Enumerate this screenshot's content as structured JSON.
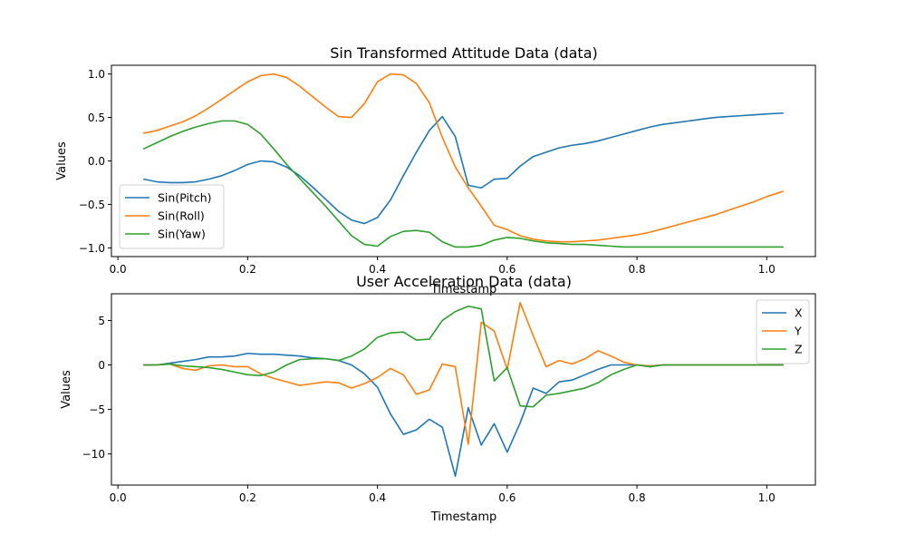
{
  "chart_data": [
    {
      "type": "line",
      "title": "Sin Transformed Attitude Data (data)",
      "xlabel": "Timestamp",
      "ylabel": "Values",
      "xlim": [
        -0.01,
        1.075
      ],
      "ylim": [
        -1.1,
        1.1
      ],
      "xticks": [
        0.0,
        0.2,
        0.4,
        0.6,
        0.8,
        1.0
      ],
      "xtick_labels": [
        "0.0",
        "0.2",
        "0.4",
        "0.6",
        "0.8",
        "1.0"
      ],
      "yticks": [
        -1.0,
        -0.5,
        0.0,
        0.5,
        1.0
      ],
      "ytick_labels": [
        "−1.0",
        "−0.5",
        "0.0",
        "0.5",
        "1.0"
      ],
      "grid": false,
      "legend_position": "bottom-left",
      "x": [
        0.04,
        0.06,
        0.08,
        0.1,
        0.12,
        0.14,
        0.16,
        0.18,
        0.2,
        0.22,
        0.24,
        0.26,
        0.28,
        0.3,
        0.32,
        0.34,
        0.36,
        0.38,
        0.4,
        0.42,
        0.44,
        0.46,
        0.48,
        0.5,
        0.52,
        0.54,
        0.56,
        0.58,
        0.6,
        0.62,
        0.64,
        0.66,
        0.68,
        0.7,
        0.72,
        0.74,
        0.76,
        0.78,
        0.8,
        0.82,
        0.84,
        0.86,
        0.88,
        0.9,
        0.92,
        0.94,
        0.96,
        0.98,
        1.0,
        1.025
      ],
      "series": [
        {
          "name": "Sin(Pitch)",
          "color": "#1f77b4",
          "values": [
            -0.21,
            -0.24,
            -0.25,
            -0.25,
            -0.24,
            -0.21,
            -0.17,
            -0.11,
            -0.04,
            0.0,
            -0.01,
            -0.07,
            -0.17,
            -0.3,
            -0.44,
            -0.58,
            -0.68,
            -0.72,
            -0.65,
            -0.45,
            -0.17,
            0.1,
            0.35,
            0.51,
            0.28,
            -0.28,
            -0.31,
            -0.21,
            -0.2,
            -0.06,
            0.05,
            0.1,
            0.15,
            0.18,
            0.2,
            0.23,
            0.27,
            0.31,
            0.35,
            0.39,
            0.42,
            0.44,
            0.46,
            0.48,
            0.5,
            0.51,
            0.52,
            0.53,
            0.54,
            0.55
          ]
        },
        {
          "name": "Sin(Roll)",
          "color": "#ff7f0e",
          "values": [
            0.32,
            0.35,
            0.4,
            0.45,
            0.52,
            0.61,
            0.71,
            0.81,
            0.91,
            0.98,
            1.0,
            0.96,
            0.86,
            0.74,
            0.62,
            0.51,
            0.5,
            0.66,
            0.91,
            1.0,
            0.99,
            0.89,
            0.67,
            0.27,
            -0.07,
            -0.31,
            -0.52,
            -0.74,
            -0.79,
            -0.86,
            -0.9,
            -0.92,
            -0.93,
            -0.93,
            -0.92,
            -0.91,
            -0.89,
            -0.87,
            -0.85,
            -0.82,
            -0.78,
            -0.74,
            -0.7,
            -0.66,
            -0.62,
            -0.57,
            -0.52,
            -0.47,
            -0.41,
            -0.35
          ]
        },
        {
          "name": "Sin(Yaw)",
          "color": "#2ca02c",
          "values": [
            0.14,
            0.21,
            0.28,
            0.34,
            0.39,
            0.43,
            0.46,
            0.46,
            0.42,
            0.31,
            0.14,
            -0.04,
            -0.2,
            -0.36,
            -0.52,
            -0.69,
            -0.86,
            -0.96,
            -0.98,
            -0.87,
            -0.81,
            -0.8,
            -0.82,
            -0.93,
            -0.99,
            -0.99,
            -0.97,
            -0.91,
            -0.88,
            -0.89,
            -0.92,
            -0.94,
            -0.95,
            -0.96,
            -0.96,
            -0.97,
            -0.98,
            -0.99,
            -0.99,
            -0.99,
            -0.99,
            -0.99,
            -0.99,
            -0.99,
            -0.99,
            -0.99,
            -0.99,
            -0.99,
            -0.99,
            -0.99
          ]
        }
      ]
    },
    {
      "type": "line",
      "title": "User Acceleration Data (data)",
      "xlabel": "Timestamp",
      "ylabel": "Values",
      "xlim": [
        -0.01,
        1.075
      ],
      "ylim": [
        -13.5,
        8.0
      ],
      "xticks": [
        0.0,
        0.2,
        0.4,
        0.6,
        0.8,
        1.0
      ],
      "xtick_labels": [
        "0.0",
        "0.2",
        "0.4",
        "0.6",
        "0.8",
        "1.0"
      ],
      "yticks": [
        -10,
        -5,
        0,
        5
      ],
      "ytick_labels": [
        "−10",
        "−5",
        "0",
        "5"
      ],
      "grid": false,
      "legend_position": "top-right",
      "x": [
        0.04,
        0.06,
        0.08,
        0.1,
        0.12,
        0.14,
        0.16,
        0.18,
        0.2,
        0.22,
        0.24,
        0.26,
        0.28,
        0.3,
        0.32,
        0.34,
        0.36,
        0.38,
        0.4,
        0.42,
        0.44,
        0.46,
        0.48,
        0.5,
        0.52,
        0.54,
        0.56,
        0.58,
        0.6,
        0.62,
        0.64,
        0.66,
        0.68,
        0.7,
        0.72,
        0.74,
        0.76,
        0.78,
        0.8,
        0.82,
        0.84,
        0.86,
        0.88,
        0.9,
        0.92,
        0.94,
        0.96,
        0.98,
        1.0,
        1.025
      ],
      "series": [
        {
          "name": "X",
          "color": "#1f77b4",
          "values": [
            0.0,
            0.0,
            0.2,
            0.4,
            0.6,
            0.9,
            0.9,
            1.0,
            1.3,
            1.2,
            1.2,
            1.1,
            1.0,
            0.8,
            0.7,
            0.5,
            0.0,
            -1.0,
            -2.5,
            -5.5,
            -7.8,
            -7.3,
            -6.1,
            -7.0,
            -12.5,
            -4.8,
            -9.0,
            -6.6,
            -9.8,
            -6.5,
            -2.6,
            -3.2,
            -1.9,
            -1.7,
            -1.1,
            -0.5,
            0.0,
            0.0,
            0.0,
            -0.2,
            0.0,
            0.0,
            0.0,
            0.0,
            0.0,
            0.0,
            0.0,
            0.0,
            0.0,
            0.0
          ]
        },
        {
          "name": "Y",
          "color": "#ff7f0e",
          "values": [
            0.0,
            0.0,
            0.1,
            -0.4,
            -0.6,
            -0.1,
            0.0,
            -0.2,
            -0.2,
            -1.0,
            -1.5,
            -1.9,
            -2.3,
            -2.1,
            -1.9,
            -2.0,
            -2.6,
            -2.1,
            -1.4,
            -0.4,
            -1.1,
            -3.3,
            -2.8,
            0.1,
            -0.2,
            -8.9,
            4.8,
            3.8,
            -0.5,
            7.0,
            3.3,
            -0.2,
            0.5,
            0.1,
            0.7,
            1.6,
            1.0,
            0.3,
            0.0,
            -0.1,
            0.0,
            0.0,
            0.0,
            0.0,
            0.0,
            0.0,
            0.0,
            0.0,
            0.0,
            0.0
          ]
        },
        {
          "name": "Z",
          "color": "#2ca02c",
          "values": [
            0.0,
            0.0,
            0.1,
            -0.1,
            -0.2,
            -0.3,
            -0.5,
            -0.8,
            -1.1,
            -1.2,
            -0.8,
            0.0,
            0.6,
            0.7,
            0.7,
            0.5,
            1.0,
            1.8,
            3.1,
            3.6,
            3.7,
            2.8,
            2.9,
            5.0,
            6.0,
            6.6,
            6.3,
            -1.8,
            -0.3,
            -4.6,
            -4.7,
            -3.4,
            -3.2,
            -2.9,
            -2.6,
            -2.0,
            -1.1,
            -0.5,
            0.0,
            -0.2,
            0.0,
            0.0,
            0.0,
            0.0,
            0.0,
            0.0,
            0.0,
            0.0,
            0.0,
            0.0
          ]
        }
      ]
    }
  ]
}
